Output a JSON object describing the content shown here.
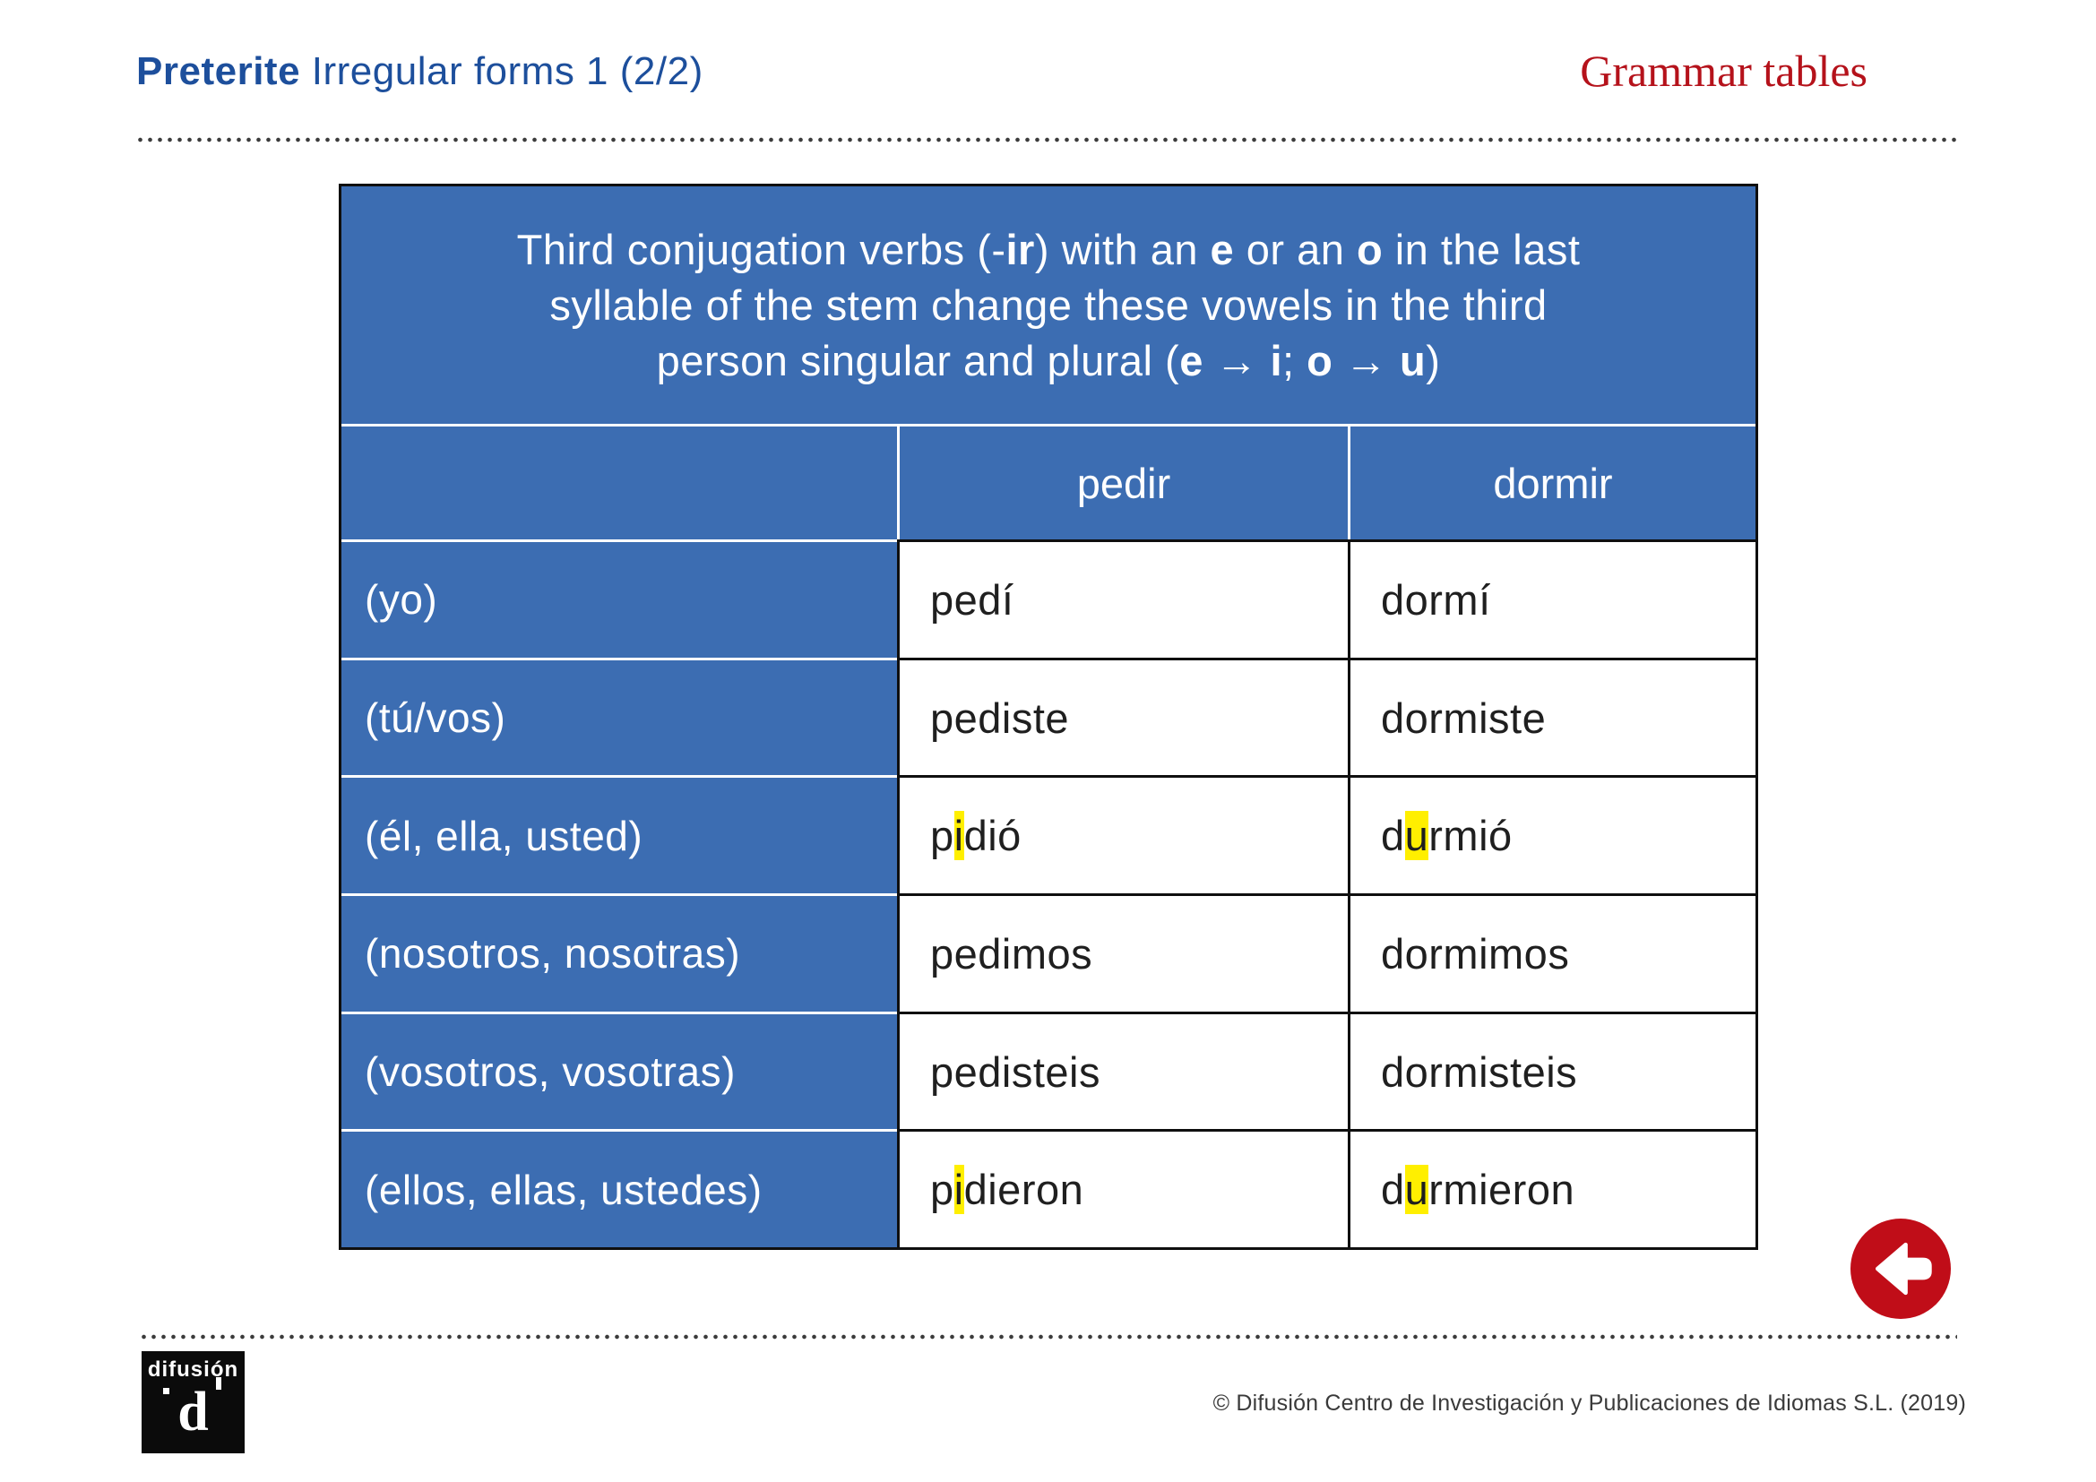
{
  "header": {
    "title_bold": "Preterite",
    "title_rest": " Irregular forms 1 (2/2)",
    "right_label": "Grammar tables"
  },
  "colors": {
    "table_blue": "#3c6db2",
    "title_blue": "#1d4f9c",
    "label_red": "#b5121b",
    "button_red": "#c00d18",
    "highlight_yellow": "#ffef00"
  },
  "table": {
    "intro_lines": [
      [
        {
          "t": "Third conjugation verbs (-"
        },
        {
          "t": "ir",
          "b": true
        },
        {
          "t": ") with an "
        },
        {
          "t": "e",
          "b": true
        },
        {
          "t": " or an "
        },
        {
          "t": "o",
          "b": true
        },
        {
          "t": " in the last"
        }
      ],
      [
        {
          "t": "syllable of the stem change these vowels in the third"
        }
      ],
      [
        {
          "t": "person singular and plural ("
        },
        {
          "t": "e → i",
          "b": true
        },
        {
          "t": "; "
        },
        {
          "t": "o → u",
          "b": true
        },
        {
          "t": ")"
        }
      ]
    ],
    "columns": [
      "pedir",
      "dormir"
    ],
    "rows": [
      {
        "pronoun": "(yo)",
        "cells": [
          [
            {
              "t": "pedí"
            }
          ],
          [
            {
              "t": "dormí"
            }
          ]
        ]
      },
      {
        "pronoun": "(tú/vos)",
        "cells": [
          [
            {
              "t": "pediste"
            }
          ],
          [
            {
              "t": "dormiste"
            }
          ]
        ]
      },
      {
        "pronoun": "(él, ella, usted)",
        "cells": [
          [
            {
              "t": "p"
            },
            {
              "t": "i",
              "hl": true
            },
            {
              "t": "dió"
            }
          ],
          [
            {
              "t": "d"
            },
            {
              "t": "u",
              "hl": true
            },
            {
              "t": "rmió"
            }
          ]
        ]
      },
      {
        "pronoun": "(nosotros, nosotras)",
        "cells": [
          [
            {
              "t": "pedimos"
            }
          ],
          [
            {
              "t": "dormimos"
            }
          ]
        ]
      },
      {
        "pronoun": "(vosotros, vosotras)",
        "cells": [
          [
            {
              "t": "pedisteis"
            }
          ],
          [
            {
              "t": "dormisteis"
            }
          ]
        ]
      },
      {
        "pronoun": "(ellos, ellas, ustedes)",
        "cells": [
          [
            {
              "t": "p"
            },
            {
              "t": "i",
              "hl": true
            },
            {
              "t": "dieron"
            }
          ],
          [
            {
              "t": "d"
            },
            {
              "t": "u",
              "hl": true
            },
            {
              "t": "rmieron"
            }
          ]
        ]
      }
    ]
  },
  "footer": {
    "logo_word": "difusión",
    "logo_mark": "d",
    "copyright": "© Difusión Centro de Investigación y Publicaciones de Idiomas S.L. (2019)"
  },
  "nav": {
    "back_icon": "left-arrow"
  }
}
